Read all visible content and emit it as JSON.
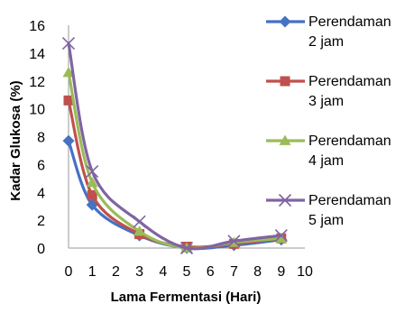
{
  "chart_data": {
    "type": "line",
    "xlabel": "Lama Fermentasi (Hari)",
    "ylabel": "Kadar Glukosa (%)",
    "xlim": [
      0,
      10
    ],
    "ylim": [
      0,
      16
    ],
    "xticks": [
      0,
      1,
      2,
      3,
      4,
      5,
      6,
      7,
      8,
      9,
      10
    ],
    "yticks": [
      0,
      2,
      4,
      6,
      8,
      10,
      12,
      14,
      16
    ],
    "grid": false,
    "legend_position": "right",
    "x": [
      0,
      1,
      3,
      5,
      7,
      9
    ],
    "series": [
      {
        "name": "Perendaman 2 jam",
        "values": [
          7.7,
          3.1,
          0.9,
          0.0,
          0.2,
          0.6
        ],
        "color": "#4472c4",
        "marker": "diamond"
      },
      {
        "name": "Perendaman 3 jam",
        "values": [
          10.6,
          3.8,
          1.0,
          0.1,
          0.3,
          0.7
        ],
        "color": "#c0504d",
        "marker": "square"
      },
      {
        "name": "Perendaman 4 jam",
        "values": [
          12.6,
          4.7,
          1.2,
          0.0,
          0.4,
          0.7
        ],
        "color": "#9bbb59",
        "marker": "triangle"
      },
      {
        "name": "Perendaman 5 jam",
        "values": [
          14.7,
          5.5,
          1.9,
          0.0,
          0.5,
          0.9
        ],
        "color": "#8064a2",
        "marker": "x"
      }
    ]
  }
}
